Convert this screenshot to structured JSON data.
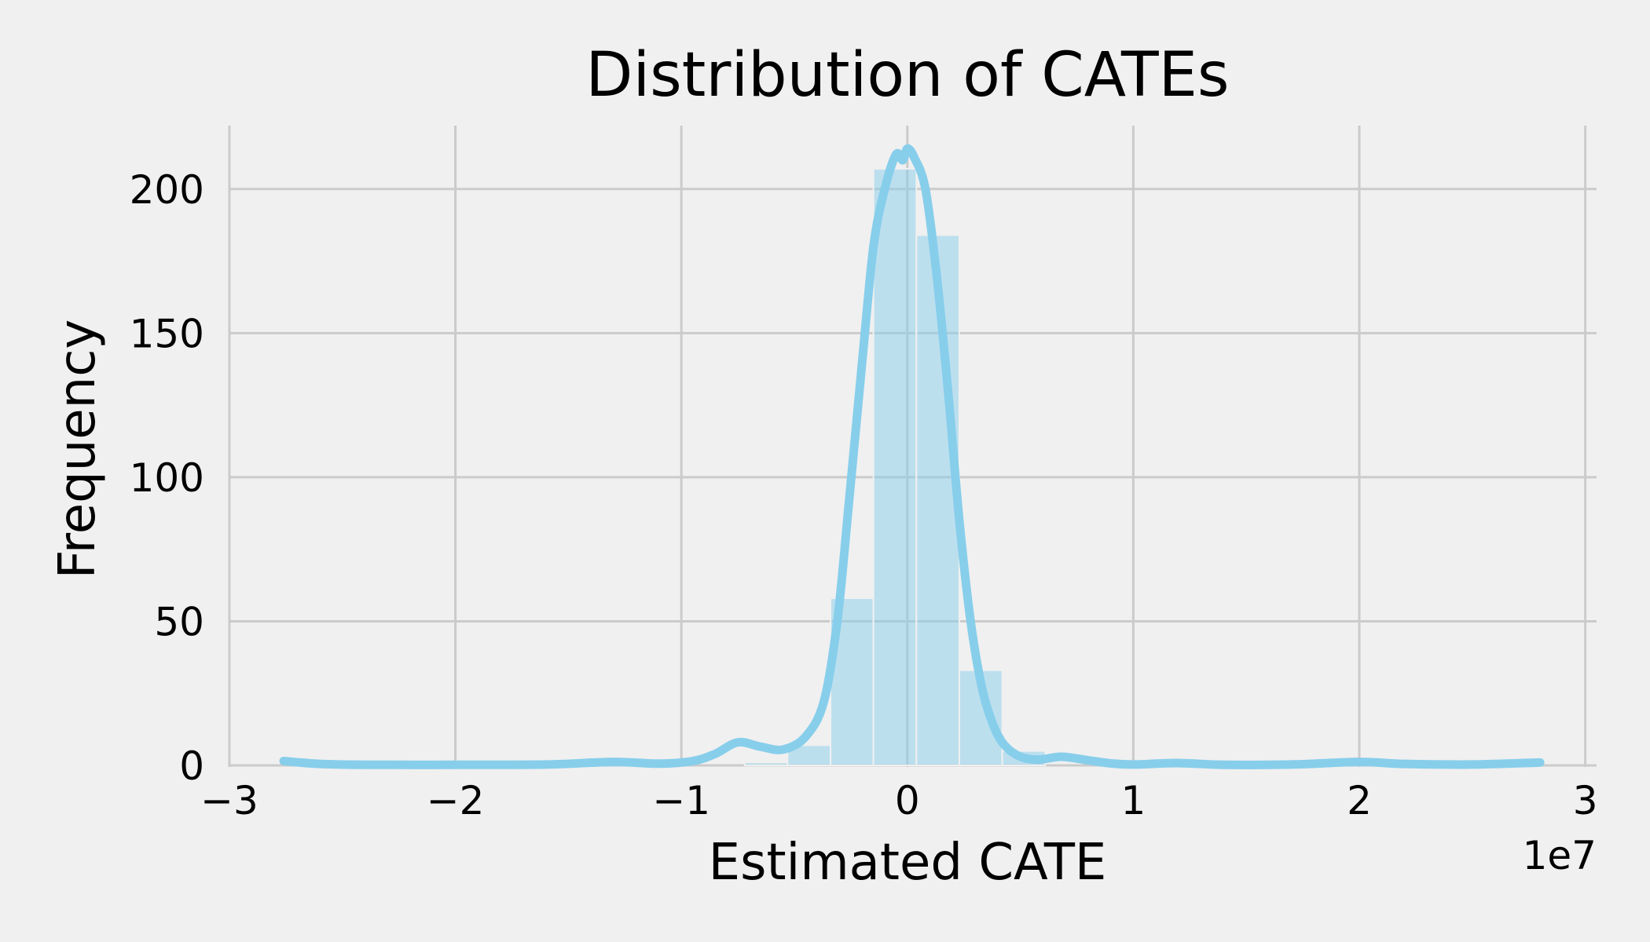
{
  "chart_data": {
    "type": "bar",
    "title": "Distribution of CATEs",
    "xlabel": "Estimated CATE",
    "ylabel": "Frequency",
    "x_offset_label": "1e7",
    "xlim": [
      -3.0,
      3.05
    ],
    "ylim": [
      0,
      222
    ],
    "x_ticks": [
      -3,
      -2,
      -1,
      0,
      1,
      2,
      3
    ],
    "x_tick_labels": [
      "−3",
      "−2",
      "−1",
      "0",
      "1",
      "2",
      "3"
    ],
    "y_ticks": [
      0,
      50,
      100,
      150,
      200
    ],
    "y_tick_labels": [
      "0",
      "50",
      "100",
      "150",
      "200"
    ],
    "grid": true,
    "legend": "none",
    "colors": {
      "bar": "#87ceeb",
      "kde": "#87ceeb",
      "grid": "#cbcbcb",
      "background": "#f0f0f0"
    },
    "histogram": {
      "bin_edges": [
        -0.72,
        -0.53,
        -0.34,
        -0.15,
        0.04,
        0.23,
        0.42,
        0.61
      ],
      "counts": [
        1,
        7,
        58,
        207,
        184,
        33,
        5
      ]
    },
    "kde": {
      "x": [
        -2.76,
        -2.6,
        -2.4,
        -2.0,
        -1.6,
        -1.3,
        -1.1,
        -0.95,
        -0.85,
        -0.75,
        -0.65,
        -0.55,
        -0.45,
        -0.37,
        -0.31,
        -0.26,
        -0.2,
        -0.15,
        -0.1,
        -0.05,
        -0.02,
        0.0,
        0.03,
        0.08,
        0.13,
        0.18,
        0.23,
        0.28,
        0.33,
        0.38,
        0.43,
        0.5,
        0.58,
        0.68,
        0.78,
        0.9,
        1.0,
        1.2,
        1.4,
        1.7,
        2.0,
        2.2,
        2.5,
        2.8
      ],
      "y": [
        1.5,
        0.5,
        0.2,
        0.2,
        0.3,
        1.2,
        0.6,
        1.5,
        4.0,
        8.0,
        6.5,
        5.5,
        10.0,
        22.0,
        50.0,
        90.0,
        140.0,
        180.0,
        200.0,
        212.0,
        210.0,
        214.0,
        211.0,
        200.0,
        170.0,
        130.0,
        85.0,
        50.0,
        27.0,
        14.0,
        7.0,
        3.0,
        2.0,
        3.0,
        2.0,
        0.7,
        0.3,
        0.8,
        0.2,
        0.3,
        1.2,
        0.5,
        0.3,
        1.0
      ]
    }
  }
}
